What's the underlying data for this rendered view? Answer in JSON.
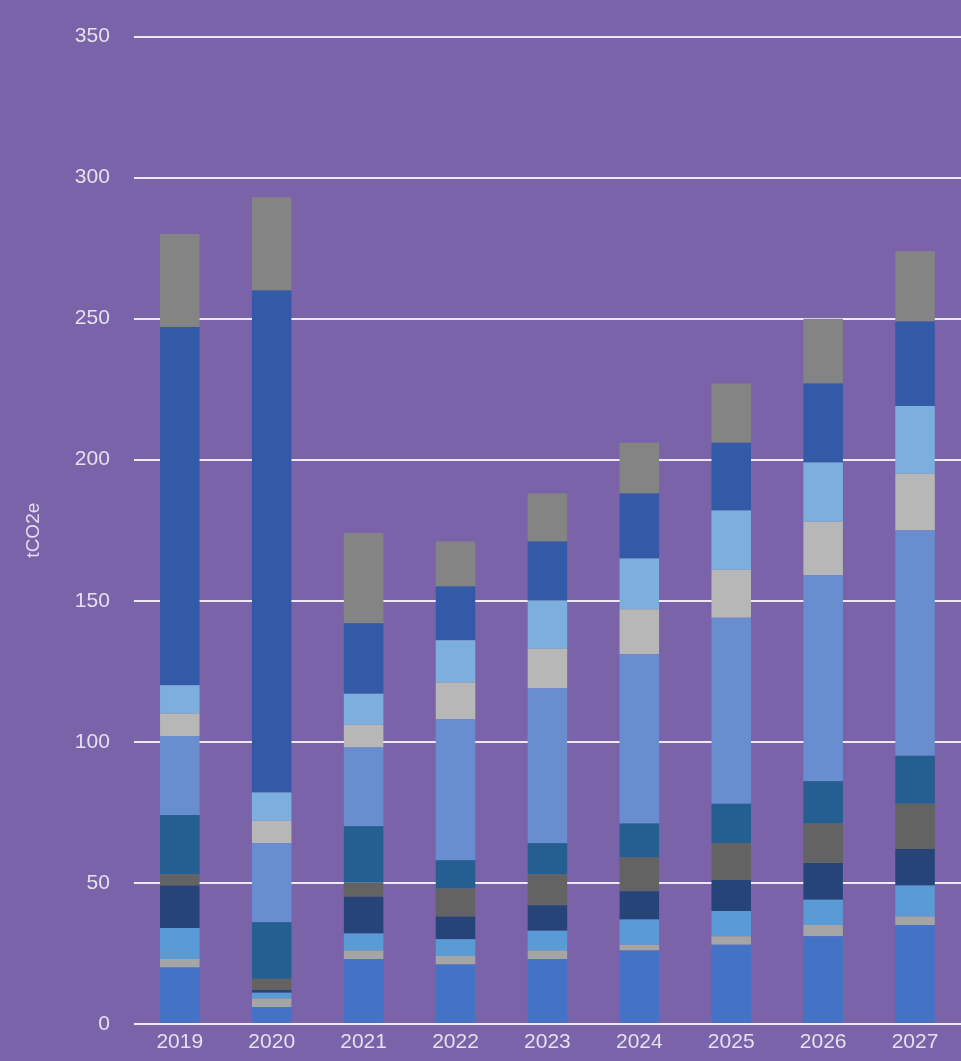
{
  "chart_data": {
    "type": "bar",
    "stacked": true,
    "ylabel": "tCO2e",
    "categories": [
      "2019",
      "2020",
      "2021",
      "2022",
      "2023",
      "2024",
      "2025",
      "2026",
      "2027"
    ],
    "series": [
      {
        "color": "#4472c4",
        "values": [
          20,
          6,
          23,
          21,
          23,
          26,
          28,
          31,
          35
        ]
      },
      {
        "color": "#a5a5a5",
        "values": [
          3,
          3,
          3,
          3,
          3,
          2,
          3,
          4,
          3
        ]
      },
      {
        "color": "#5b9bd5",
        "values": [
          11,
          2,
          6,
          6,
          7,
          9,
          9,
          9,
          11
        ]
      },
      {
        "color": "#264478",
        "values": [
          15,
          1,
          13,
          8,
          9,
          10,
          11,
          13,
          13
        ]
      },
      {
        "color": "#636363",
        "values": [
          4,
          4,
          5,
          10,
          11,
          12,
          13,
          14,
          16
        ]
      },
      {
        "color": "#255e91",
        "values": [
          21,
          20,
          20,
          10,
          11,
          12,
          14,
          15,
          17
        ]
      },
      {
        "color": "#698ed0",
        "values": [
          28,
          28,
          28,
          50,
          55,
          60,
          66,
          73,
          80
        ]
      },
      {
        "color": "#b7b7b7",
        "values": [
          8,
          8,
          8,
          13,
          14,
          16,
          17,
          19,
          20
        ]
      },
      {
        "color": "#7cafdd",
        "values": [
          10,
          10,
          11,
          15,
          17,
          18,
          21,
          21,
          24
        ]
      },
      {
        "color": "#335aa6",
        "values": [
          127,
          178,
          25,
          19,
          21,
          23,
          24,
          28,
          30
        ]
      },
      {
        "color": "#848484",
        "values": [
          33,
          33,
          32,
          16,
          17,
          18,
          21,
          23,
          25
        ]
      }
    ],
    "ylim": [
      0,
      350
    ],
    "yticks": [
      0,
      50,
      100,
      150,
      200,
      250,
      300,
      350
    ],
    "grid": "y",
    "legend": false
  }
}
